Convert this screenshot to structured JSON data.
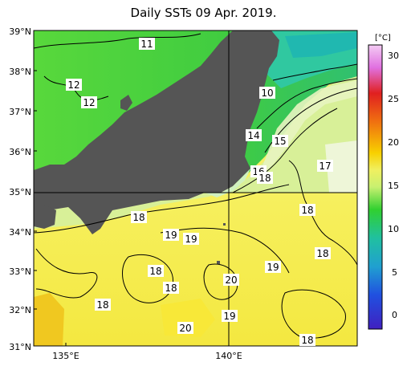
{
  "title": "Daily SSTs 09 Apr. 2019.",
  "colors": {
    "land": "#555555",
    "border": "#000000",
    "grid": "#000000"
  },
  "lat_labels": [
    "39°N",
    "38°N",
    "37°N",
    "36°N",
    "35°N",
    "34°N",
    "33°N",
    "32°N",
    "31°N"
  ],
  "lon_labels": [
    "135°E",
    "140°E"
  ],
  "colorbar": {
    "unit": "[°C]",
    "ticks": [
      "30",
      "25",
      "20",
      "15",
      "10",
      "5",
      "0"
    ],
    "stops": [
      "#f4ccf4",
      "#e060e0",
      "#e02020",
      "#f07010",
      "#f8d000",
      "#f0f060",
      "#c8f070",
      "#20d020",
      "#20c0a0",
      "#20a0d0",
      "#2040e0",
      "#4020c0"
    ]
  },
  "contour_labels": [
    {
      "text": "11",
      "id": "11-north"
    },
    {
      "text": "12",
      "id": "12-a"
    },
    {
      "text": "12",
      "id": "12-b"
    },
    {
      "text": "10",
      "id": "10"
    },
    {
      "text": "14",
      "id": "14"
    },
    {
      "text": "15",
      "id": "15"
    },
    {
      "text": "16",
      "id": "16"
    },
    {
      "text": "18",
      "id": "18-bay"
    },
    {
      "text": "17",
      "id": "17"
    },
    {
      "text": "18",
      "id": "18-east"
    },
    {
      "text": "18",
      "id": "18-kii"
    },
    {
      "text": "19",
      "id": "19-a"
    },
    {
      "text": "19",
      "id": "19-b"
    },
    {
      "text": "18",
      "id": "18-se"
    },
    {
      "text": "19",
      "id": "19-c"
    },
    {
      "text": "18",
      "id": "18-c"
    },
    {
      "text": "18",
      "id": "18-d"
    },
    {
      "text": "20",
      "id": "20-a"
    },
    {
      "text": "18",
      "id": "18-w"
    },
    {
      "text": "19",
      "id": "19-d"
    },
    {
      "text": "20",
      "id": "20-b"
    },
    {
      "text": "18",
      "id": "18-s"
    }
  ]
}
